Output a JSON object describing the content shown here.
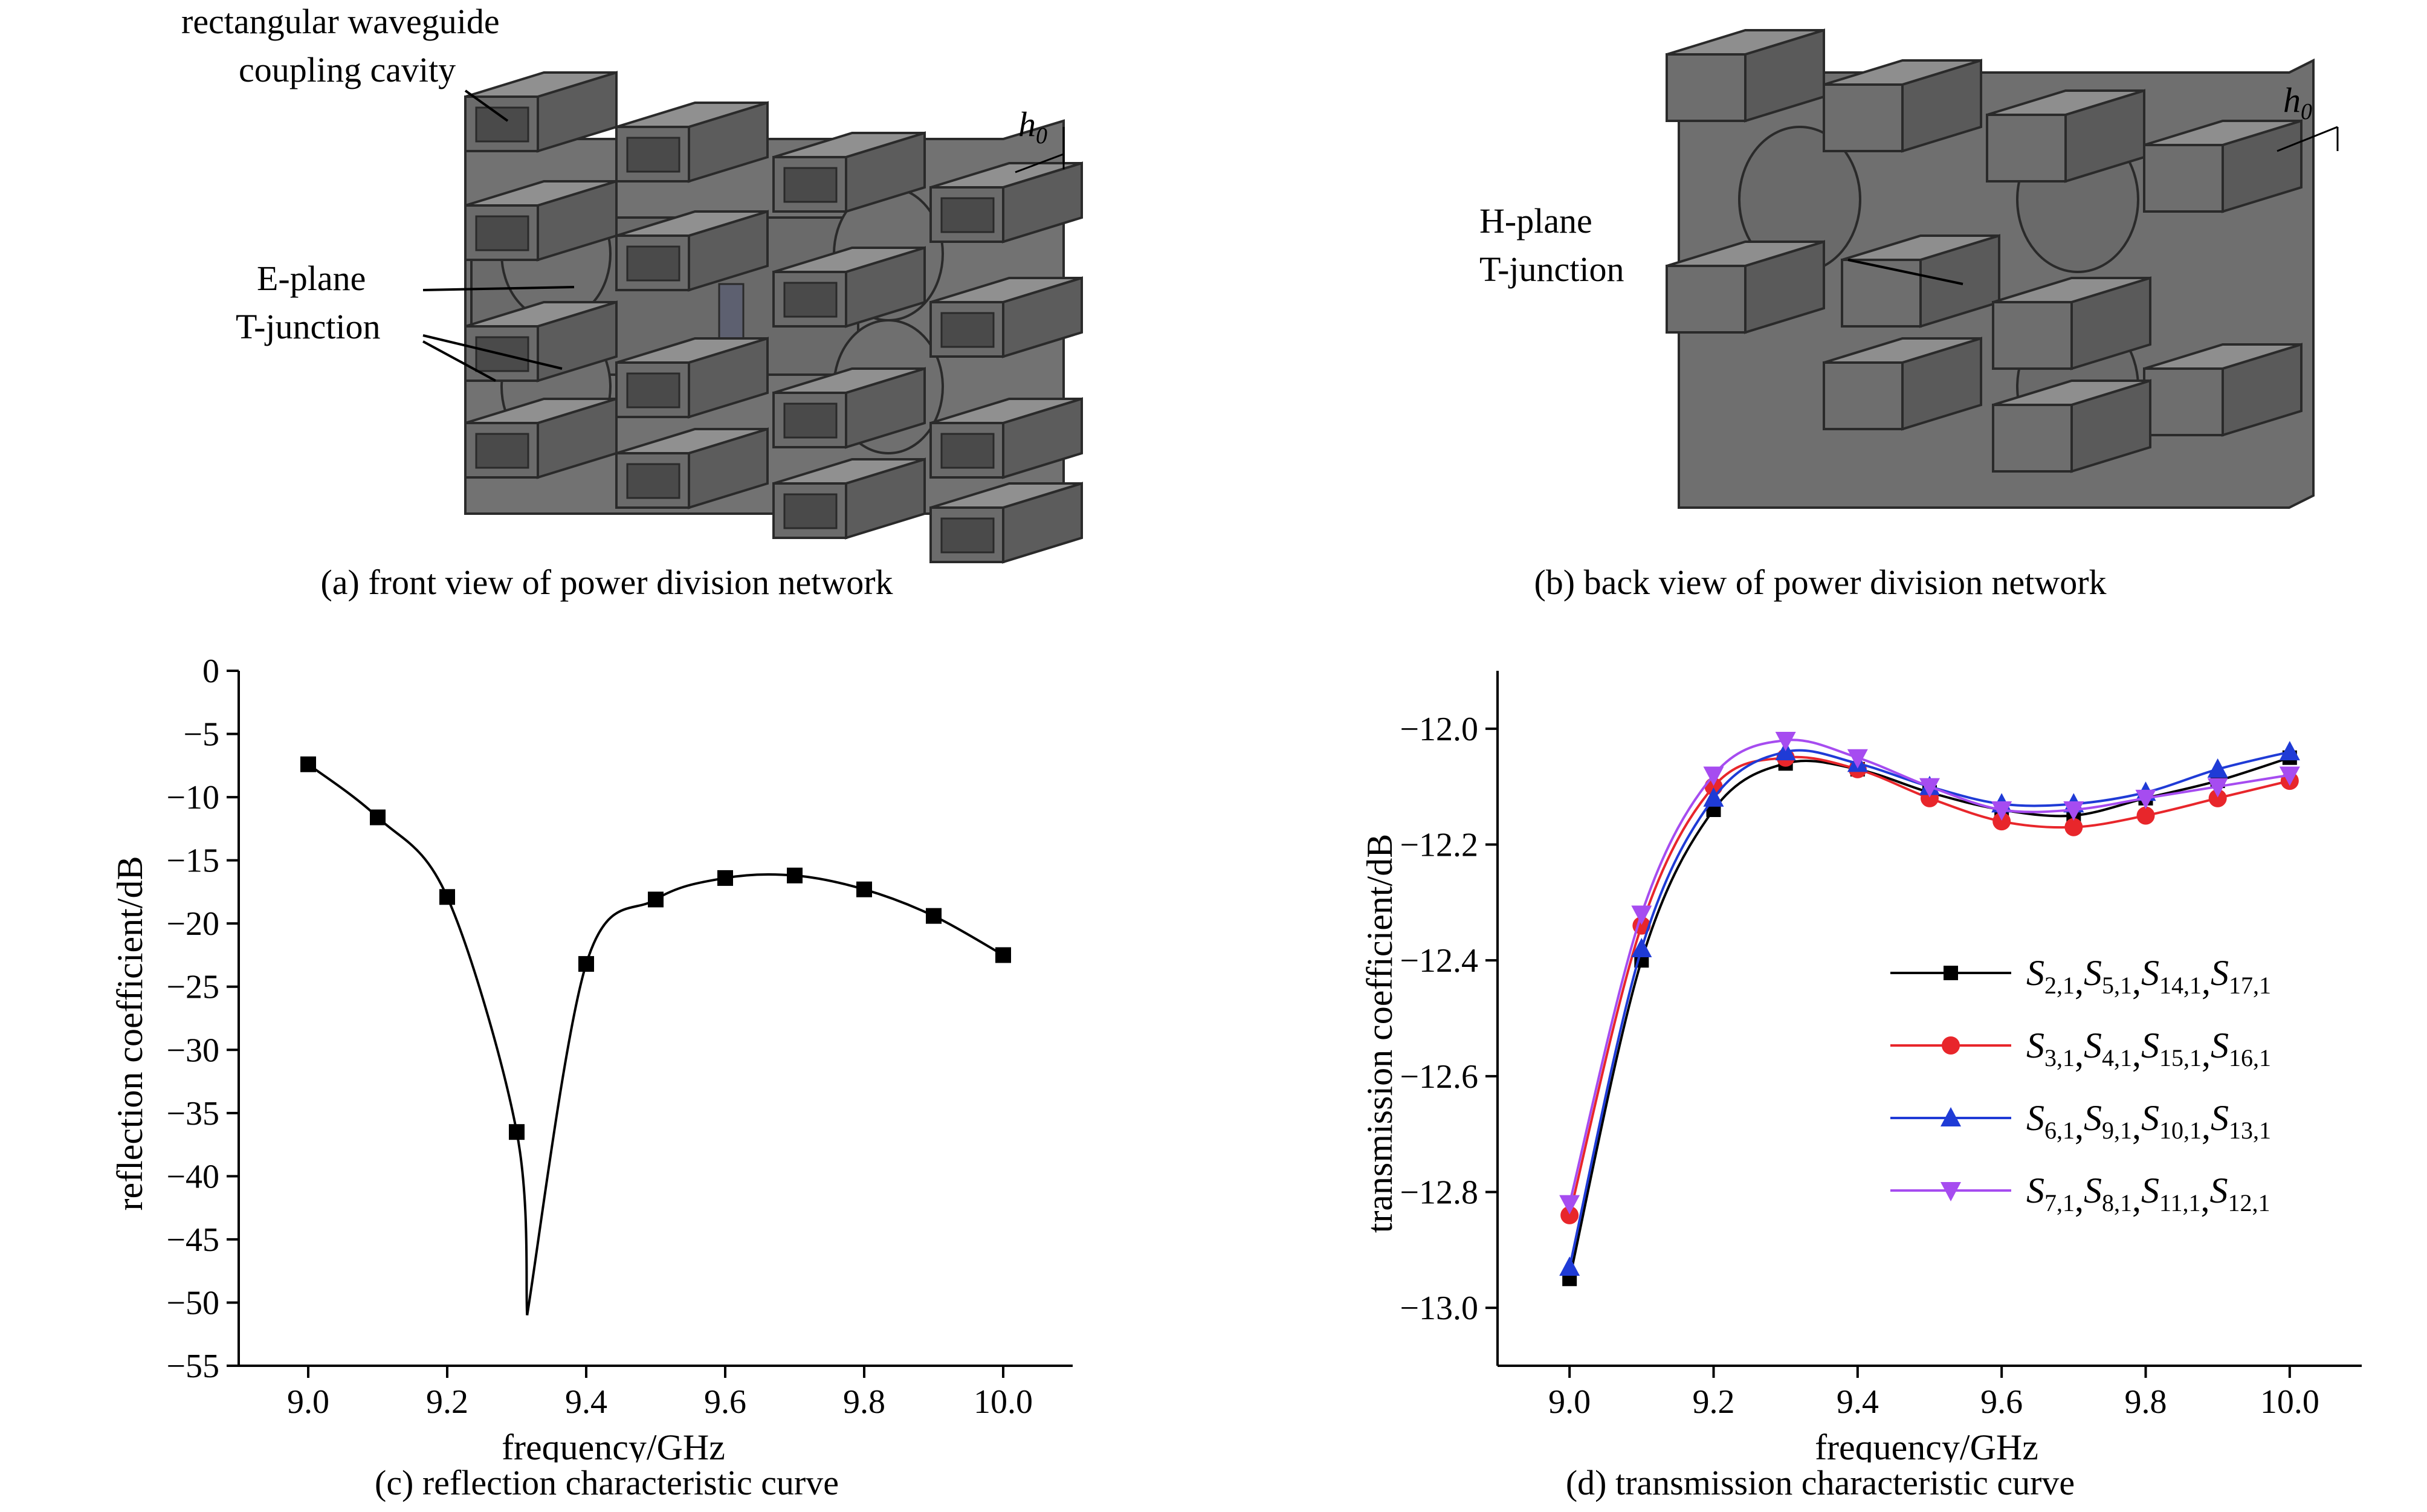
{
  "captions": {
    "a": "(a) front view of power division network",
    "b": "(b) back view of power division network",
    "c": "(c) reflection characteristic curve",
    "d": "(d) transmission characteristic curve"
  },
  "annotations_a": {
    "waveguide_line1": "rectangular waveguide",
    "waveguide_line2": "coupling cavity",
    "eplane_line1": "E-plane",
    "eplane_line2": "T-junction",
    "h0": "h",
    "h0_sub": "0"
  },
  "annotations_b": {
    "hplane_line1": "H-plane",
    "hplane_line2": "T-junction",
    "h0": "h",
    "h0_sub": "0"
  },
  "colors": {
    "metal_face": "#6e6e6e",
    "metal_top": "#858585",
    "metal_dark": "#4f4f4f",
    "s_group1": "#000000",
    "s_group2": "#e8262b",
    "s_group3": "#1f3bd6",
    "s_group4": "#a64cf0"
  },
  "chart_data": [
    {
      "type": "line",
      "xlabel": "frequency/GHz",
      "ylabel": "reflection coefficient/dB",
      "xlim": [
        8.9,
        10.1
      ],
      "ylim": [
        -55,
        0
      ],
      "xticks": [
        "9.0",
        "9.2",
        "9.4",
        "9.6",
        "9.8",
        "10.0"
      ],
      "yticks": [
        "0",
        "−5",
        "−10",
        "−15",
        "−20",
        "−25",
        "−30",
        "−35",
        "−40",
        "−45",
        "−50",
        "−55"
      ],
      "series": [
        {
          "marker": "square",
          "color": "#000000",
          "x": [
            9.0,
            9.1,
            9.2,
            9.3,
            9.4,
            9.5,
            9.6,
            9.7,
            9.8,
            9.9,
            10.0
          ],
          "y": [
            -7.4,
            -11.6,
            -17.9,
            -36.5,
            -23.2,
            -18.1,
            -16.4,
            -16.2,
            -17.3,
            -19.4,
            -22.5
          ]
        }
      ],
      "curve_min": {
        "x": 9.315,
        "y": -51.0
      }
    },
    {
      "type": "line",
      "xlabel": "frequency/GHz",
      "ylabel": "transmission coefficient/dB",
      "xlim": [
        8.9,
        10.1
      ],
      "ylim": [
        -13.1,
        -11.9
      ],
      "xticks": [
        "9.0",
        "9.2",
        "9.4",
        "9.6",
        "9.8",
        "10.0"
      ],
      "yticks": [
        "−12.0",
        "−12.2",
        "−12.4",
        "−12.6",
        "−12.8",
        "−13.0"
      ],
      "legend_position": "right",
      "x": [
        9.0,
        9.1,
        9.2,
        9.3,
        9.4,
        9.5,
        9.6,
        9.7,
        9.8,
        9.9,
        10.0
      ],
      "series": [
        {
          "marker": "square",
          "color": "#000000",
          "legend": [
            [
              "S",
              "2,1"
            ],
            [
              "S",
              "5,1"
            ],
            [
              "S",
              "14,1"
            ],
            [
              "S",
              "17,1"
            ]
          ],
          "values": [
            -12.95,
            -12.4,
            -12.14,
            -12.06,
            -12.07,
            -12.11,
            -12.14,
            -12.15,
            -12.12,
            -12.09,
            -12.05
          ]
        },
        {
          "marker": "circle",
          "color": "#e8262b",
          "legend": [
            [
              "S",
              "3,1"
            ],
            [
              "S",
              "4,1"
            ],
            [
              "S",
              "15,1"
            ],
            [
              "S",
              "16,1"
            ]
          ],
          "values": [
            -12.84,
            -12.34,
            -12.1,
            -12.05,
            -12.07,
            -12.12,
            -12.16,
            -12.17,
            -12.15,
            -12.12,
            -12.09
          ]
        },
        {
          "marker": "triangle-up",
          "color": "#1f3bd6",
          "legend": [
            [
              "S",
              "6,1"
            ],
            [
              "S",
              "9,1"
            ],
            [
              "S",
              "10,1"
            ],
            [
              "S",
              "13,1"
            ]
          ],
          "values": [
            -12.93,
            -12.38,
            -12.12,
            -12.04,
            -12.06,
            -12.1,
            -12.13,
            -12.13,
            -12.11,
            -12.07,
            -12.04
          ]
        },
        {
          "marker": "triangle-down",
          "color": "#a64cf0",
          "legend": [
            [
              "S",
              "7,1"
            ],
            [
              "S",
              "8,1"
            ],
            [
              "S",
              "11,1"
            ],
            [
              "S",
              "12,1"
            ]
          ],
          "values": [
            -12.82,
            -12.32,
            -12.08,
            -12.02,
            -12.05,
            -12.1,
            -12.14,
            -12.14,
            -12.12,
            -12.1,
            -12.08
          ]
        }
      ]
    }
  ]
}
